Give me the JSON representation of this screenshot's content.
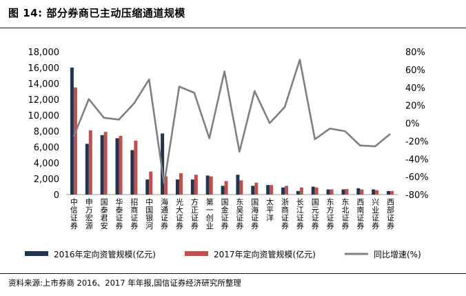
{
  "figure": {
    "title": "图 14:  部分券商已主动压缩通道规模",
    "source": "资料来源:上市券商 2016、2017 年年报,国信证券经济研究所整理"
  },
  "chart_data": {
    "type": "bar",
    "categories": [
      "中信证券",
      "申万宏源",
      "国泰君安",
      "华泰证券",
      "招商证券",
      "中国银河",
      "海通证券",
      "光大证券",
      "方正证券",
      "第一创业",
      "国金证券",
      "东吴证券",
      "国海证券",
      "太平洋",
      "浙商证券",
      "长江证券",
      "国元证券",
      "东方证券",
      "东北证券",
      "西南证券",
      "兴业证券",
      "西部证券"
    ],
    "series": [
      {
        "name": "2016年定向资管规模(亿元)",
        "type": "bar",
        "axis": "left",
        "color": "#1f3550",
        "values": [
          16000,
          6400,
          7500,
          7100,
          5600,
          1900,
          7700,
          1900,
          1900,
          2400,
          1100,
          2500,
          1100,
          1200,
          900,
          450,
          1000,
          650,
          650,
          800,
          650,
          450
        ]
      },
      {
        "name": "2017年定向资管规模(亿元)",
        "type": "bar",
        "axis": "left",
        "color": "#c0504d",
        "values": [
          13500,
          8100,
          7900,
          7400,
          6800,
          2900,
          2300,
          2700,
          2500,
          2300,
          1700,
          1800,
          1500,
          1200,
          1100,
          900,
          900,
          650,
          700,
          650,
          550,
          450
        ]
      },
      {
        "name": "同比增速(%)",
        "type": "line",
        "axis": "right",
        "color": "#7f7f7f",
        "values": [
          -15,
          27,
          6,
          4,
          22,
          49,
          -68,
          41,
          34,
          -17,
          58,
          -32,
          36,
          0,
          18,
          71,
          -18,
          -6,
          -9,
          -25,
          -26,
          -12
        ]
      }
    ],
    "y_left": {
      "min": 0,
      "max": 18000,
      "ticks": [
        "0",
        "2,000",
        "4,000",
        "6,000",
        "8,000",
        "10,000",
        "12,000",
        "14,000",
        "16,000",
        "18,000"
      ]
    },
    "y_right": {
      "min": -80,
      "max": 80,
      "ticks": [
        "-80%",
        "-60%",
        "-40%",
        "-20%",
        "0%",
        "20%",
        "40%",
        "60%",
        "80%"
      ]
    },
    "legend": [
      "2016年定向资管规模(亿元)",
      "2017年定向资管规模(亿元)",
      "同比增速(%)"
    ],
    "legend_position": "bottom",
    "grid": false
  }
}
